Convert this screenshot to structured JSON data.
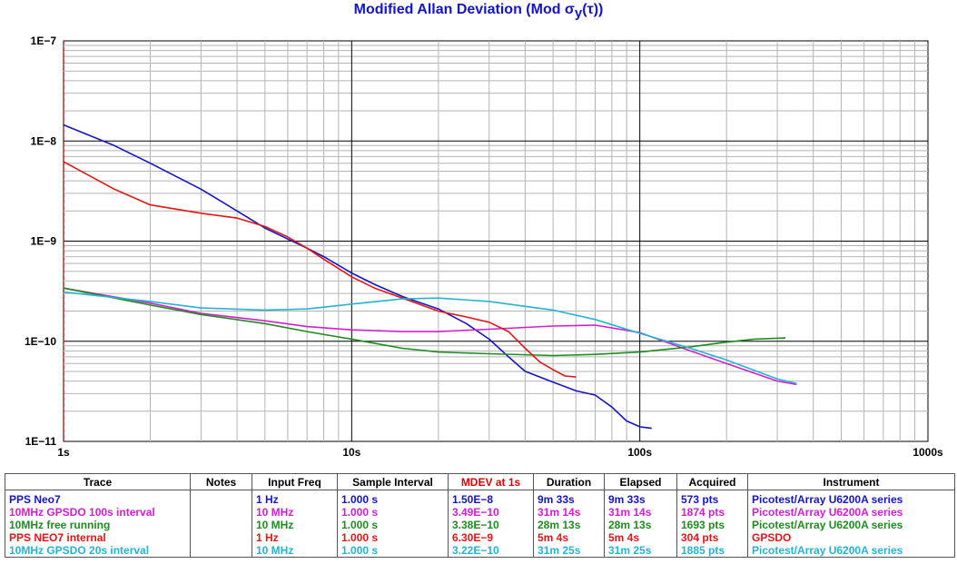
{
  "chart_data": {
    "type": "line",
    "title": "Modified Allan Deviation (Mod σ y(τ))",
    "x_scale": "log",
    "y_scale": "log",
    "xlim": [
      1,
      1000
    ],
    "ylim": [
      1e-11,
      1e-07
    ],
    "x_tick_labels": [
      "1s",
      "10s",
      "100s",
      "1000s"
    ],
    "y_tick_labels": [
      "1E−7",
      "1E−8",
      "1E−9",
      "1E−10",
      "1E−11"
    ],
    "grid": true,
    "series": [
      {
        "name": "PPS Neo7",
        "color": "#1414c8",
        "points": [
          [
            1,
            1.45e-08
          ],
          [
            1.5,
            9e-09
          ],
          [
            2,
            6e-09
          ],
          [
            3,
            3.3e-09
          ],
          [
            4,
            2e-09
          ],
          [
            5,
            1.35e-09
          ],
          [
            6,
            1.05e-09
          ],
          [
            7,
            8.5e-10
          ],
          [
            8,
            7e-10
          ],
          [
            10,
            4.8e-10
          ],
          [
            12,
            3.7e-10
          ],
          [
            15,
            2.8e-10
          ],
          [
            20,
            2.1e-10
          ],
          [
            25,
            1.5e-10
          ],
          [
            30,
            1.05e-10
          ],
          [
            35,
            7e-11
          ],
          [
            40,
            5e-11
          ],
          [
            50,
            3.9e-11
          ],
          [
            60,
            3.2e-11
          ],
          [
            70,
            2.9e-11
          ],
          [
            80,
            2.2e-11
          ],
          [
            90,
            1.6e-11
          ],
          [
            100,
            1.4e-11
          ],
          [
            110,
            1.35e-11
          ]
        ]
      },
      {
        "name": "10MHz GPSDO 100s interval",
        "color": "#d21ed2",
        "points": [
          [
            1,
            3.4e-10
          ],
          [
            2,
            2.4e-10
          ],
          [
            3,
            1.9e-10
          ],
          [
            5,
            1.6e-10
          ],
          [
            7,
            1.4e-10
          ],
          [
            10,
            1.3e-10
          ],
          [
            15,
            1.25e-10
          ],
          [
            20,
            1.25e-10
          ],
          [
            30,
            1.32e-10
          ],
          [
            50,
            1.42e-10
          ],
          [
            70,
            1.45e-10
          ],
          [
            100,
            1.22e-10
          ],
          [
            150,
            8e-11
          ],
          [
            200,
            6e-11
          ],
          [
            300,
            4e-11
          ],
          [
            350,
            3.7e-11
          ]
        ]
      },
      {
        "name": "10MHz free running",
        "color": "#1e8c1e",
        "points": [
          [
            1,
            3.4e-10
          ],
          [
            2,
            2.3e-10
          ],
          [
            3,
            1.85e-10
          ],
          [
            5,
            1.5e-10
          ],
          [
            7,
            1.25e-10
          ],
          [
            10,
            1.05e-10
          ],
          [
            15,
            8.5e-11
          ],
          [
            20,
            7.8e-11
          ],
          [
            30,
            7.5e-11
          ],
          [
            50,
            7.2e-11
          ],
          [
            70,
            7.4e-11
          ],
          [
            100,
            7.8e-11
          ],
          [
            150,
            8.8e-11
          ],
          [
            200,
            9.8e-11
          ],
          [
            250,
            1.05e-10
          ],
          [
            320,
            1.08e-10
          ]
        ]
      },
      {
        "name": "PPS NEO7 internal",
        "color": "#e61414",
        "points": [
          [
            1,
            6.2e-09
          ],
          [
            1.5,
            3.3e-09
          ],
          [
            2,
            2.3e-09
          ],
          [
            3,
            1.9e-09
          ],
          [
            4,
            1.7e-09
          ],
          [
            5,
            1.4e-09
          ],
          [
            6,
            1.1e-09
          ],
          [
            7,
            8.5e-10
          ],
          [
            8,
            6.6e-10
          ],
          [
            10,
            4.4e-10
          ],
          [
            12,
            3.4e-10
          ],
          [
            15,
            2.7e-10
          ],
          [
            20,
            2e-10
          ],
          [
            25,
            1.75e-10
          ],
          [
            30,
            1.55e-10
          ],
          [
            35,
            1.25e-10
          ],
          [
            40,
            8.5e-11
          ],
          [
            45,
            6.2e-11
          ],
          [
            50,
            5.2e-11
          ],
          [
            55,
            4.5e-11
          ],
          [
            60,
            4.4e-11
          ]
        ]
      },
      {
        "name": "10MHz GPSDO 20s interval",
        "color": "#23b4d2",
        "points": [
          [
            1,
            3.1e-10
          ],
          [
            2,
            2.5e-10
          ],
          [
            3,
            2.15e-10
          ],
          [
            5,
            2.05e-10
          ],
          [
            7,
            2.1e-10
          ],
          [
            10,
            2.35e-10
          ],
          [
            15,
            2.65e-10
          ],
          [
            20,
            2.7e-10
          ],
          [
            30,
            2.5e-10
          ],
          [
            50,
            2.05e-10
          ],
          [
            70,
            1.65e-10
          ],
          [
            100,
            1.2e-10
          ],
          [
            150,
            8.5e-11
          ],
          [
            200,
            6.5e-11
          ],
          [
            300,
            4.2e-11
          ],
          [
            350,
            3.8e-11
          ]
        ]
      }
    ]
  },
  "legend": {
    "headers": {
      "trace": "Trace",
      "notes": "Notes",
      "input_freq": "Input Freq",
      "sample_interval": "Sample Interval",
      "mdev": "MDEV at 1s",
      "duration": "Duration",
      "elapsed": "Elapsed",
      "acquired": "Acquired",
      "instrument": "Instrument"
    },
    "rows": [
      {
        "color": "#1414c8",
        "trace": "PPS Neo7",
        "notes": "",
        "input_freq": "1 Hz",
        "sample_interval": "1.000 s",
        "mdev": "1.50E−8",
        "duration": "9m 33s",
        "elapsed": "9m 33s",
        "acquired": "573 pts",
        "instrument": "Picotest/Array U6200A series"
      },
      {
        "color": "#d21ed2",
        "trace": "10MHz GPSDO 100s interval",
        "notes": "",
        "input_freq": "10 MHz",
        "sample_interval": "1.000 s",
        "mdev": "3.49E−10",
        "duration": "31m 14s",
        "elapsed": "31m 14s",
        "acquired": "1874 pts",
        "instrument": "Picotest/Array U6200A series"
      },
      {
        "color": "#1e8c1e",
        "trace": "10MHz free running",
        "notes": "",
        "input_freq": "10 MHz",
        "sample_interval": "1.000 s",
        "mdev": "3.38E−10",
        "duration": "28m 13s",
        "elapsed": "28m 13s",
        "acquired": "1693 pts",
        "instrument": "Picotest/Array U6200A series"
      },
      {
        "color": "#e61414",
        "trace": "PPS NEO7 internal",
        "notes": "",
        "input_freq": "1 Hz",
        "sample_interval": "1.000 s",
        "mdev": "6.30E−9",
        "duration": "5m 4s",
        "elapsed": "5m 4s",
        "acquired": "304 pts",
        "instrument": "GPSDO"
      },
      {
        "color": "#23b4d2",
        "trace": "10MHz GPSDO 20s interval",
        "notes": "",
        "input_freq": "10 MHz",
        "sample_interval": "1.000 s",
        "mdev": "3.22E−10",
        "duration": "31m 25s",
        "elapsed": "31m 25s",
        "acquired": "1885 pts",
        "instrument": "Picotest/Array U6200A series"
      }
    ]
  }
}
